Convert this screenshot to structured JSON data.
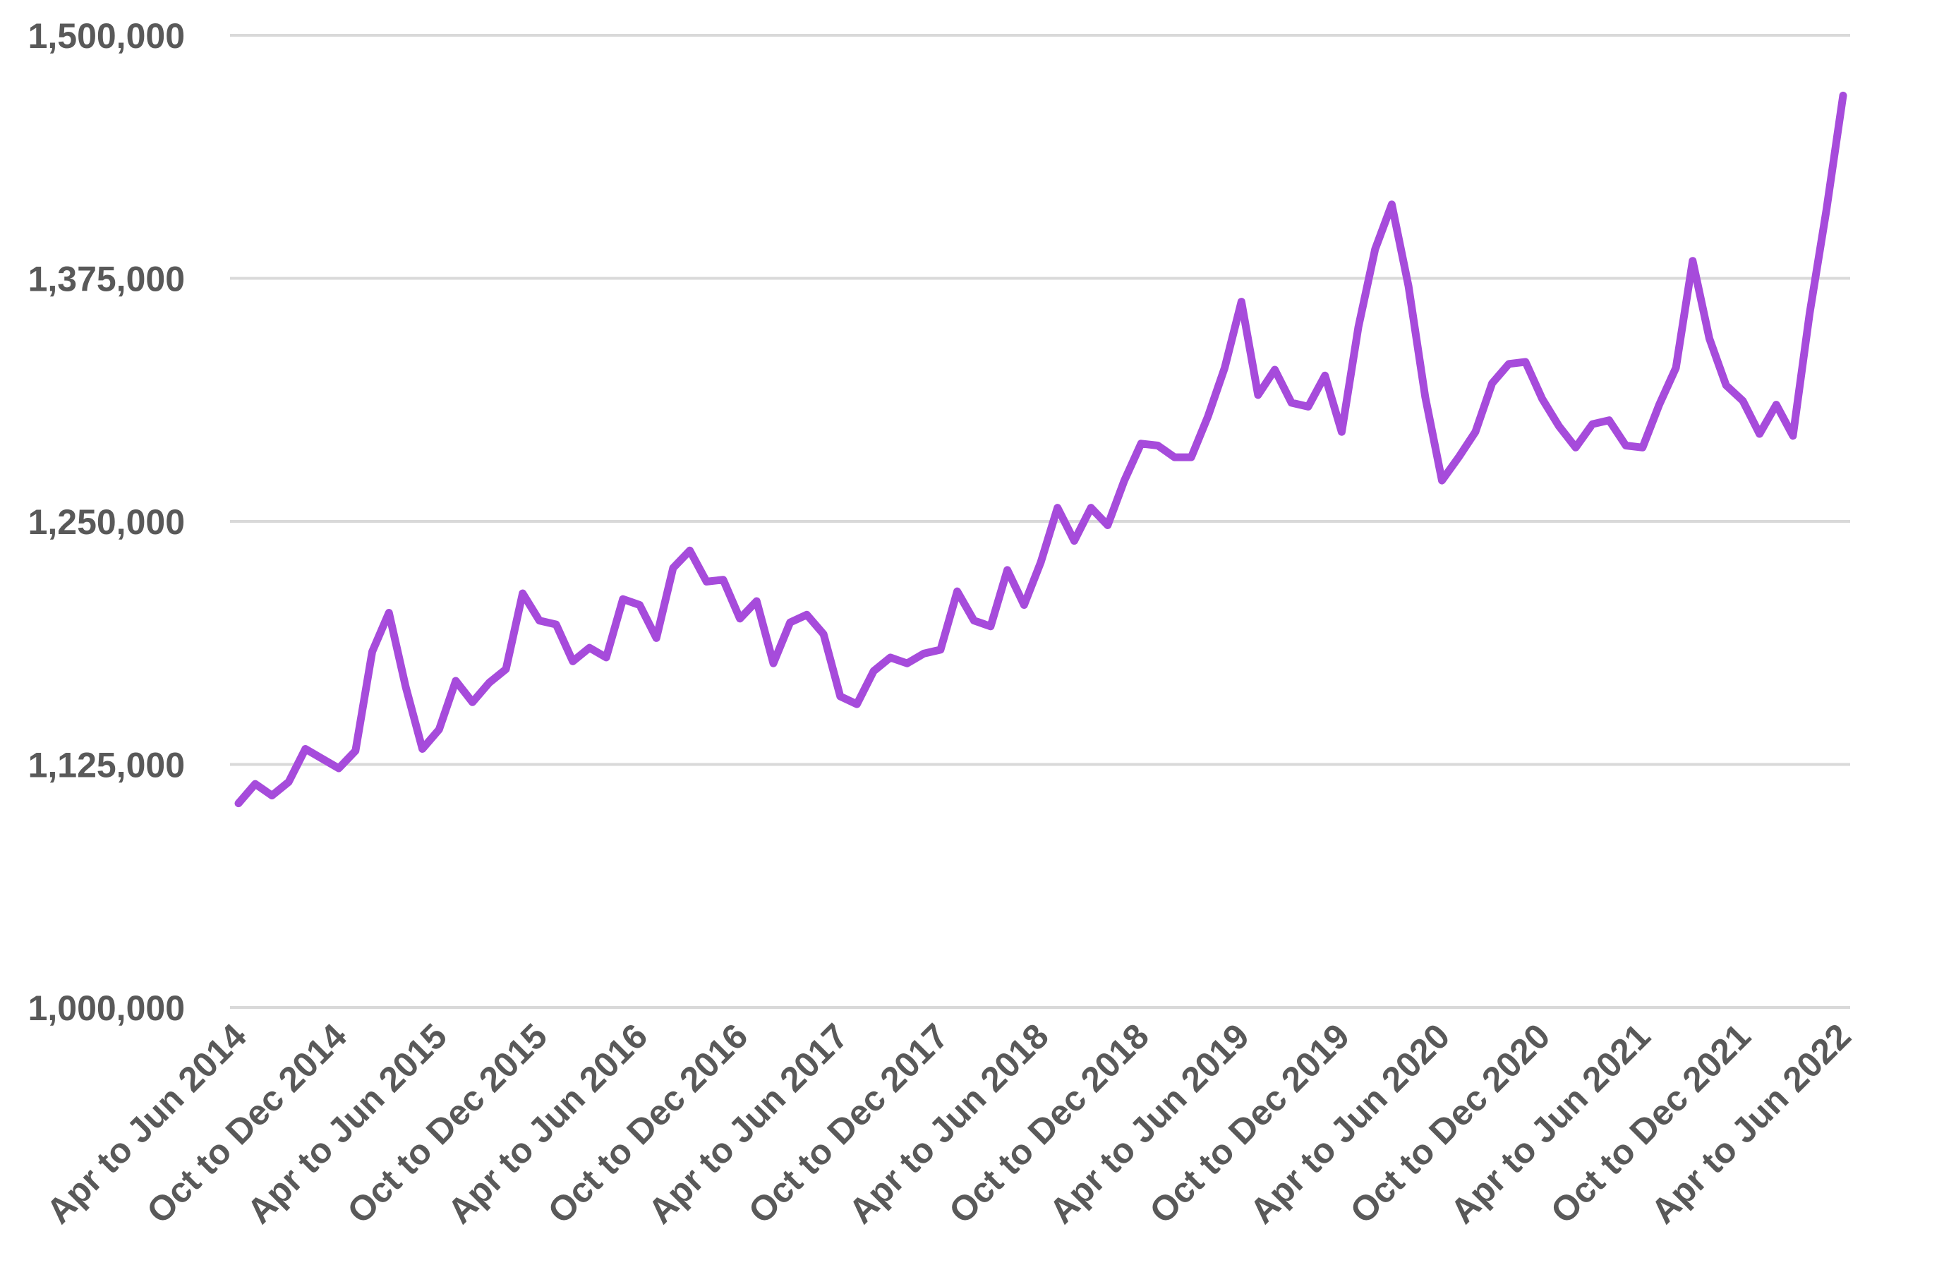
{
  "chart_data": {
    "type": "line",
    "title": "",
    "xlabel": "",
    "ylabel": "",
    "ylim": [
      1000000,
      1500000
    ],
    "yticks": [
      "1,000,000",
      "1,125,000",
      "1,250,000",
      "1,375,000",
      "1,500,000"
    ],
    "ytick_values": [
      1000000,
      1125000,
      1250000,
      1375000,
      1500000
    ],
    "xtick_labels": [
      "Apr to Jun 2014",
      "Oct to Dec 2014",
      "Apr to Jun 2015",
      "Oct to Dec 2015",
      "Apr to Jun 2016",
      "Oct to Dec 2016",
      "Apr to Jun 2017",
      "Oct to Dec 2017",
      "Apr to Jun 2018",
      "Oct to Dec 2018",
      "Apr to Jun 2019",
      "Oct to Dec 2019",
      "Apr to Jun 2020",
      "Oct to Dec 2020",
      "Apr to Jun 2021",
      "Oct to Dec 2021",
      "Apr to Jun 2022"
    ],
    "grid": true,
    "legend": "none",
    "color": "#a64bdb",
    "series": [
      {
        "values": [
          1105000,
          1115000,
          1109000,
          1116000,
          1133000,
          1128000,
          1123000,
          1132000,
          1183000,
          1203000,
          1165000,
          1133000,
          1143000,
          1168000,
          1157000,
          1167000,
          1174000,
          1213000,
          1199000,
          1197000,
          1178000,
          1185000,
          1180000,
          1210000,
          1207000,
          1190000,
          1226000,
          1235000,
          1219000,
          1220000,
          1200000,
          1209000,
          1177000,
          1198000,
          1202000,
          1192000,
          1160000,
          1156000,
          1173000,
          1180000,
          1177000,
          1182000,
          1184000,
          1214000,
          1199000,
          1196000,
          1225000,
          1207000,
          1229000,
          1257000,
          1240000,
          1257000,
          1248000,
          1271000,
          1290000,
          1289000,
          1283000,
          1283000,
          1304000,
          1329000,
          1363000,
          1315000,
          1328000,
          1311000,
          1309000,
          1325000,
          1296000,
          1350000,
          1390000,
          1413000,
          1371000,
          1314000,
          1271000,
          1283000,
          1296000,
          1321000,
          1331000,
          1332000,
          1313000,
          1299000,
          1288000,
          1300000,
          1302000,
          1289000,
          1288000,
          1310000,
          1329000,
          1384000,
          1344000,
          1320000,
          1312000,
          1295000,
          1310000,
          1294000,
          1357000,
          1410000,
          1469000
        ]
      }
    ]
  }
}
